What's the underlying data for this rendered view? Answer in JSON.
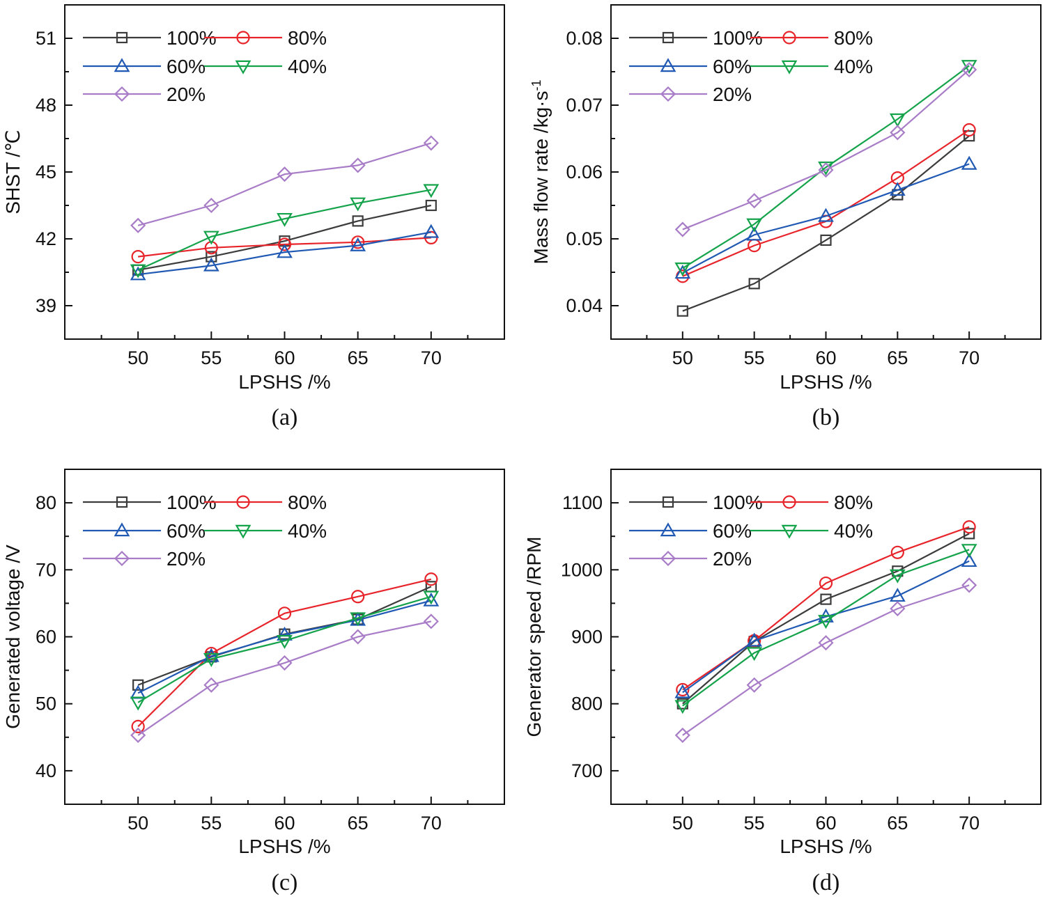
{
  "chart_data": [
    {
      "id": "a",
      "type": "line",
      "caption": "(a)",
      "xlabel": "LPSHS /%",
      "ylabel": "SHST /℃",
      "x": [
        50,
        55,
        60,
        65,
        70
      ],
      "xlim": [
        45,
        75
      ],
      "ylim": [
        37.5,
        52.5
      ],
      "yticks": [
        39,
        42,
        45,
        48,
        51
      ],
      "ytick_labels": [
        "39",
        "42",
        "45",
        "48",
        "51"
      ],
      "series": [
        {
          "name": "100%",
          "values": [
            40.6,
            41.2,
            41.9,
            42.8,
            43.5
          ]
        },
        {
          "name": "80%",
          "values": [
            41.2,
            41.6,
            41.75,
            41.85,
            42.05
          ]
        },
        {
          "name": "60%",
          "values": [
            40.4,
            40.8,
            41.4,
            41.7,
            42.3
          ]
        },
        {
          "name": "40%",
          "values": [
            40.6,
            42.1,
            42.9,
            43.6,
            44.2
          ]
        },
        {
          "name": "20%",
          "values": [
            42.6,
            43.5,
            44.9,
            45.3,
            46.3
          ]
        }
      ]
    },
    {
      "id": "b",
      "type": "line",
      "caption": "(b)",
      "xlabel": "LPSHS /%",
      "ylabel": "Mass flow rate /kg·s",
      "ylabel_sup": "-1",
      "x": [
        50,
        55,
        60,
        65,
        70
      ],
      "xlim": [
        45,
        75
      ],
      "ylim": [
        0.035,
        0.085
      ],
      "yticks": [
        0.04,
        0.05,
        0.06,
        0.07,
        0.08
      ],
      "ytick_labels": [
        "0.04",
        "0.05",
        "0.06",
        "0.07",
        "0.08"
      ],
      "series": [
        {
          "name": "100%",
          "values": [
            0.0392,
            0.0433,
            0.0498,
            0.0566,
            0.0654
          ]
        },
        {
          "name": "80%",
          "values": [
            0.0444,
            0.049,
            0.0526,
            0.0591,
            0.0663
          ]
        },
        {
          "name": "60%",
          "values": [
            0.0449,
            0.0506,
            0.0534,
            0.0573,
            0.0612
          ]
        },
        {
          "name": "40%",
          "values": [
            0.0456,
            0.0522,
            0.0607,
            0.0679,
            0.0759
          ]
        },
        {
          "name": "20%",
          "values": [
            0.0514,
            0.0557,
            0.0603,
            0.0659,
            0.0753
          ]
        }
      ]
    },
    {
      "id": "c",
      "type": "line",
      "caption": "(c)",
      "xlabel": "LPSHS /%",
      "ylabel": "Generated voltage /V",
      "x": [
        50,
        55,
        60,
        65,
        70
      ],
      "xlim": [
        45,
        75
      ],
      "ylim": [
        35,
        85
      ],
      "yticks": [
        40,
        50,
        60,
        70,
        80
      ],
      "ytick_labels": [
        "40",
        "50",
        "60",
        "70",
        "80"
      ],
      "series": [
        {
          "name": "100%",
          "values": [
            52.8,
            57.0,
            60.4,
            62.6,
            67.5
          ]
        },
        {
          "name": "80%",
          "values": [
            46.6,
            57.5,
            63.5,
            66.0,
            68.6
          ]
        },
        {
          "name": "60%",
          "values": [
            51.6,
            57.1,
            60.3,
            62.5,
            65.4
          ]
        },
        {
          "name": "40%",
          "values": [
            50.2,
            56.7,
            59.4,
            62.8,
            66.0
          ]
        },
        {
          "name": "20%",
          "values": [
            45.3,
            52.8,
            56.1,
            60.0,
            62.3
          ]
        }
      ]
    },
    {
      "id": "d",
      "type": "line",
      "caption": "(d)",
      "xlabel": "LPSHS /%",
      "ylabel": "Generator speed /RPM",
      "x": [
        50,
        55,
        60,
        65,
        70
      ],
      "xlim": [
        45,
        75
      ],
      "ylim": [
        650,
        1150
      ],
      "yticks": [
        700,
        800,
        900,
        1000,
        1100
      ],
      "ytick_labels": [
        "700",
        "800",
        "900",
        "1000",
        "1100"
      ],
      "series": [
        {
          "name": "100%",
          "values": [
            800,
            893,
            956,
            998,
            1054
          ]
        },
        {
          "name": "80%",
          "values": [
            821,
            894,
            980,
            1026,
            1064
          ]
        },
        {
          "name": "60%",
          "values": [
            817,
            894,
            930,
            961,
            1013
          ]
        },
        {
          "name": "40%",
          "values": [
            797,
            876,
            924,
            992,
            1030
          ]
        },
        {
          "name": "20%",
          "values": [
            753,
            828,
            891,
            942,
            977
          ]
        }
      ]
    }
  ],
  "legend": [
    {
      "name": "100%",
      "label": "100%",
      "color": "#3c3c3c",
      "marker": "square"
    },
    {
      "name": "80%",
      "label": "80%",
      "color": "#e8242b",
      "marker": "circle"
    },
    {
      "name": "60%",
      "label": "60%",
      "color": "#2059b3",
      "marker": "triangle-up"
    },
    {
      "name": "40%",
      "label": "40%",
      "color": "#14a34a",
      "marker": "triangle-down"
    },
    {
      "name": "20%",
      "label": "20%",
      "color": "#a87cc7",
      "marker": "diamond"
    }
  ],
  "colors": {
    "axis": "#111111",
    "background": "#ffffff"
  }
}
